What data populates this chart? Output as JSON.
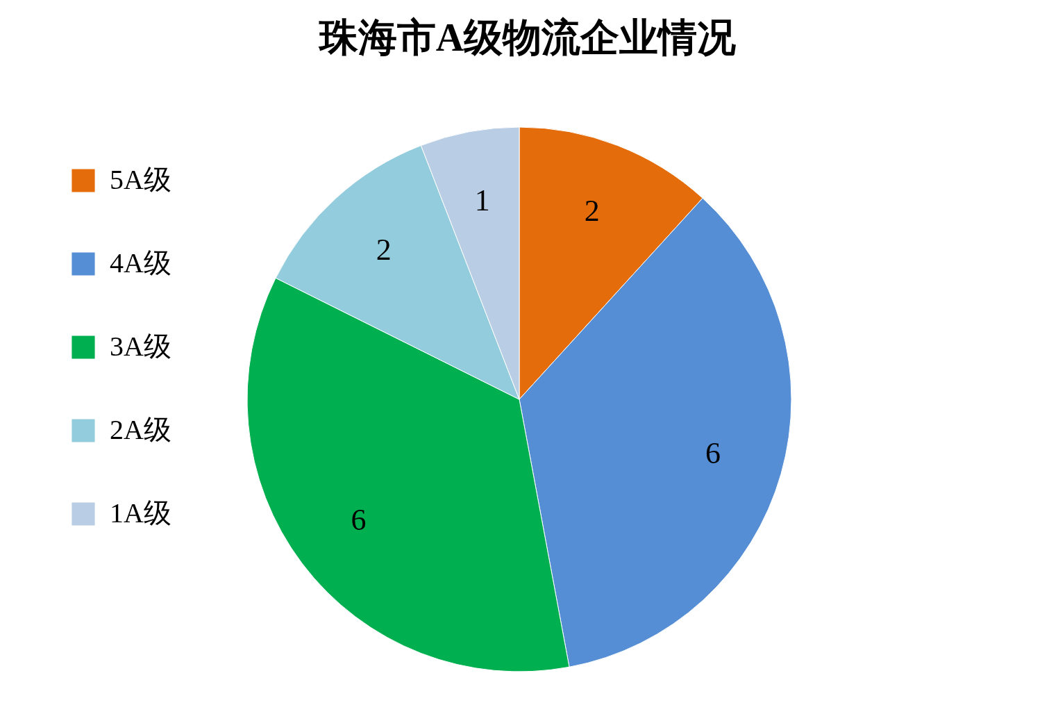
{
  "chart_data": {
    "type": "pie",
    "title": "珠海市A级物流企业情况",
    "categories": [
      "5A级",
      "4A级",
      "3A级",
      "2A级",
      "1A级"
    ],
    "values": [
      2,
      6,
      6,
      2,
      1
    ],
    "colors": [
      "#e46c0a",
      "#558ed5",
      "#00b050",
      "#93cddd",
      "#b9cde5"
    ],
    "data_labels": true,
    "legend": "left"
  }
}
